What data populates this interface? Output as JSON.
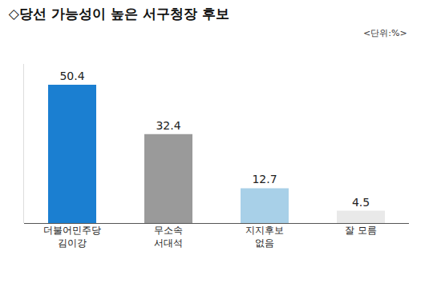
{
  "chart_data": {
    "type": "bar",
    "title": "◇당선 가능성이 높은 서구청장 후보",
    "annotations": [
      {
        "text": "<단위:%>"
      }
    ],
    "categories": [
      "더불어민주당\n김이강",
      "무소속\n서대석",
      "지지후보\n없음",
      "잘 모름"
    ],
    "values": [
      50.4,
      32.4,
      12.7,
      4.5
    ],
    "colors": [
      "#1b7fd1",
      "#9a9a9a",
      "#a8d0e8",
      "#e9e9e9"
    ],
    "ylim": [
      0,
      58
    ],
    "yticks": [],
    "tick_labels": "x",
    "grid": false,
    "data_labels": true
  }
}
